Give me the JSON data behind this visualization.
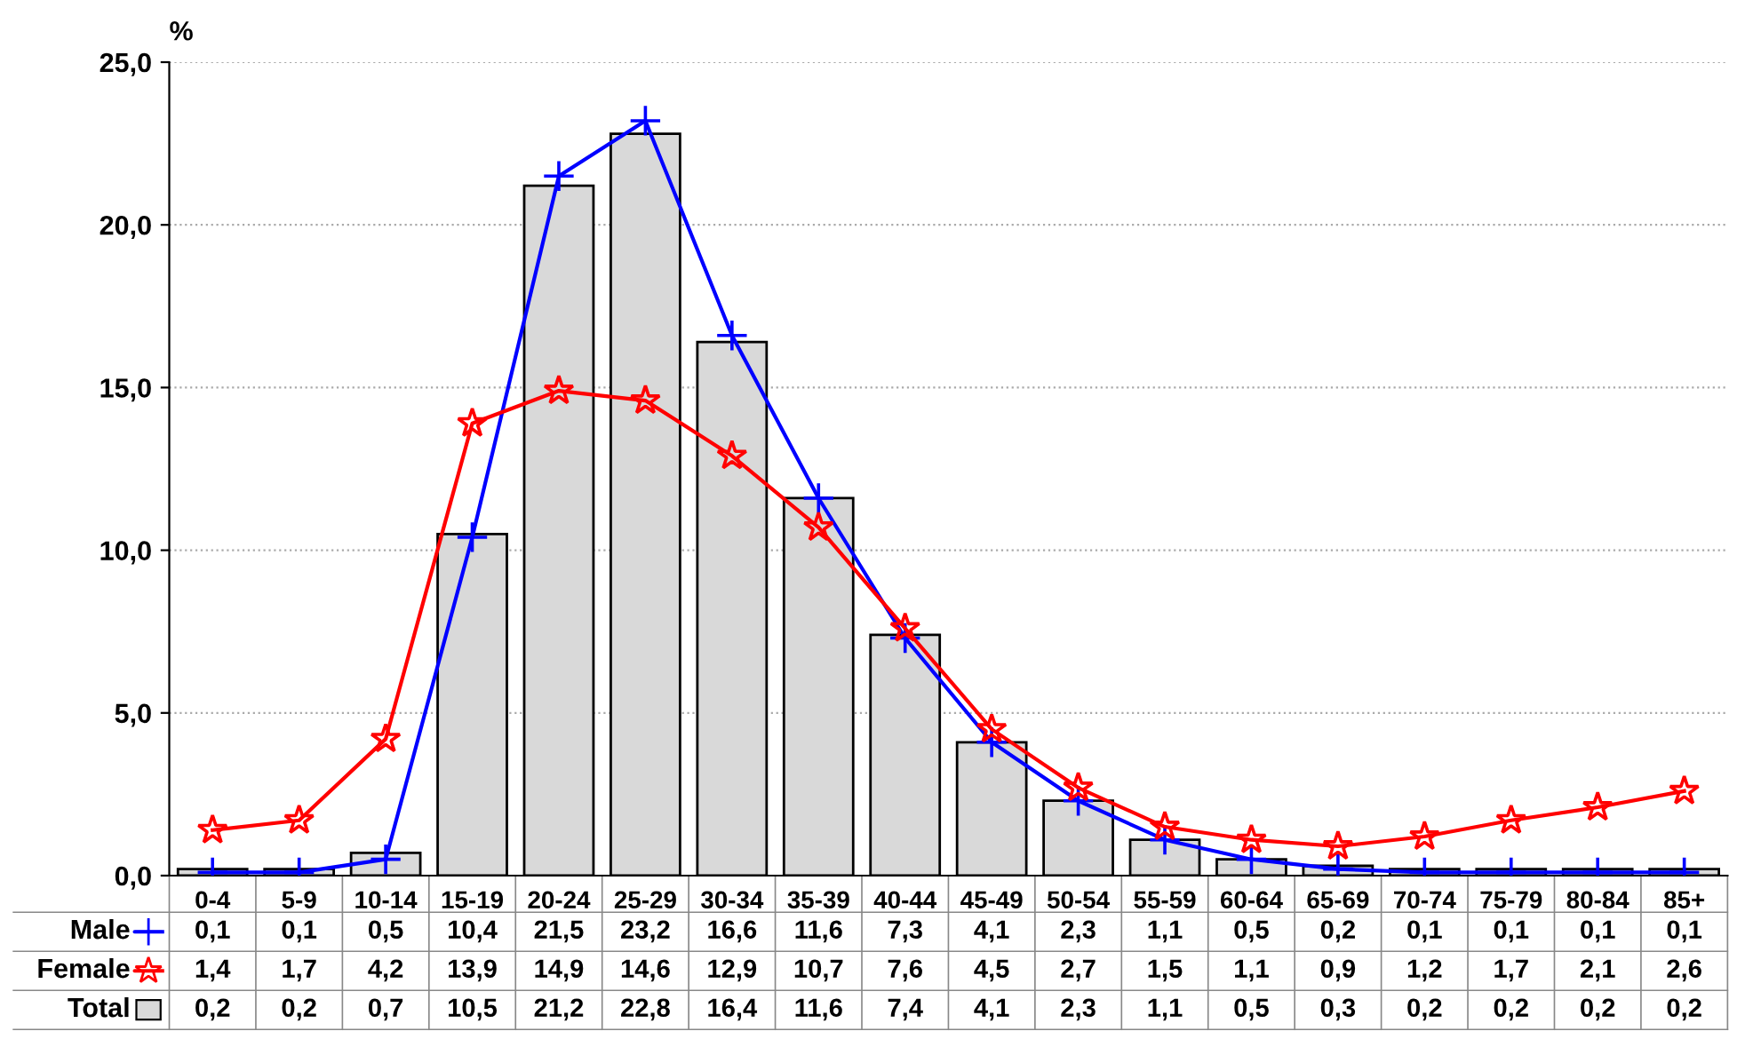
{
  "chart_data": {
    "type": "bar",
    "ylabel": "%",
    "categories": [
      "0-4",
      "5-9",
      "10-14",
      "15-19",
      "20-24",
      "25-29",
      "30-34",
      "35-39",
      "40-44",
      "45-49",
      "50-54",
      "55-59",
      "60-64",
      "65-69",
      "70-74",
      "75-79",
      "80-84",
      "85+"
    ],
    "series": [
      {
        "name": "Male",
        "type": "line",
        "color": "#0000ff",
        "marker": "cross",
        "values": [
          0.1,
          0.1,
          0.5,
          10.4,
          21.5,
          23.2,
          16.6,
          11.6,
          7.3,
          4.1,
          2.3,
          1.1,
          0.5,
          0.2,
          0.1,
          0.1,
          0.1,
          0.1
        ],
        "value_labels": [
          "0,1",
          "0,1",
          "0,5",
          "10,4",
          "21,5",
          "23,2",
          "16,6",
          "11,6",
          "7,3",
          "4,1",
          "2,3",
          "1,1",
          "0,5",
          "0,2",
          "0,1",
          "0,1",
          "0,1",
          "0,1"
        ]
      },
      {
        "name": "Female",
        "type": "line",
        "color": "#ff0000",
        "marker": "star",
        "values": [
          1.4,
          1.7,
          4.2,
          13.9,
          14.9,
          14.6,
          12.9,
          10.7,
          7.6,
          4.5,
          2.7,
          1.5,
          1.1,
          0.9,
          1.2,
          1.7,
          2.1,
          2.6
        ],
        "value_labels": [
          "1,4",
          "1,7",
          "4,2",
          "13,9",
          "14,9",
          "14,6",
          "12,9",
          "10,7",
          "7,6",
          "4,5",
          "2,7",
          "1,5",
          "1,1",
          "0,9",
          "1,2",
          "1,7",
          "2,1",
          "2,6"
        ]
      },
      {
        "name": "Total",
        "color": "#d9d9d9",
        "values": [
          0.2,
          0.2,
          0.7,
          10.5,
          21.2,
          22.8,
          16.4,
          11.6,
          7.4,
          4.1,
          2.3,
          1.1,
          0.5,
          0.3,
          0.2,
          0.2,
          0.2,
          0.2
        ],
        "value_labels": [
          "0,2",
          "0,2",
          "0,7",
          "10,5",
          "21,2",
          "22,8",
          "16,4",
          "11,6",
          "7,4",
          "4,1",
          "2,3",
          "1,1",
          "0,5",
          "0,3",
          "0,2",
          "0,2",
          "0,2",
          "0,2"
        ]
      }
    ],
    "ylim": [
      0,
      25
    ],
    "yticks": [
      {
        "value": 0,
        "label": "0,0"
      },
      {
        "value": 5,
        "label": "5,0"
      },
      {
        "value": 10,
        "label": "10,0"
      },
      {
        "value": 15,
        "label": "15,0"
      },
      {
        "value": 20,
        "label": "20,0"
      },
      {
        "value": 25,
        "label": "25,0"
      }
    ],
    "grid": "y",
    "legend": "bottom"
  }
}
